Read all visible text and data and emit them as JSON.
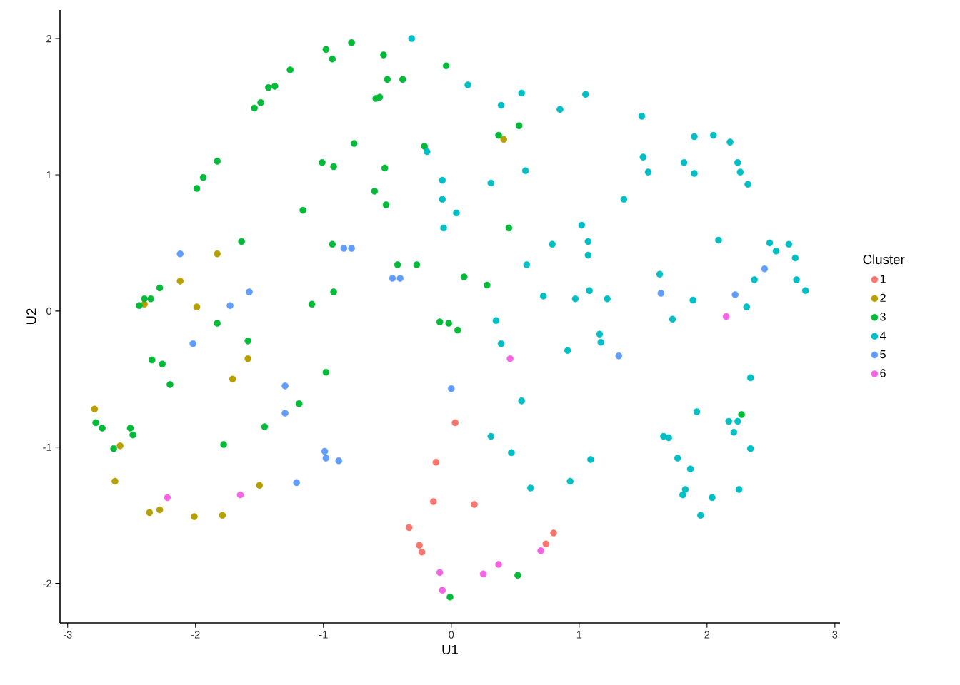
{
  "chart_data": {
    "type": "scatter",
    "xlabel": "U1",
    "ylabel": "U2",
    "legend_title": "Cluster",
    "legend": "right",
    "marker": "circle",
    "xlim": [
      -3.06,
      3.04
    ],
    "ylim": [
      -2.29,
      2.21
    ],
    "xticks": [
      -3,
      -2,
      -1,
      0,
      1,
      2,
      3
    ],
    "yticks": [
      -2,
      -1,
      0,
      1,
      2
    ],
    "series": [
      {
        "name": "1",
        "color": "#F8766D",
        "x": [
          0.03,
          -0.12,
          -0.14,
          0.18,
          -0.33,
          -0.25,
          -0.23,
          0.8,
          0.74
        ],
        "values": [
          -0.82,
          -1.11,
          -1.4,
          -1.42,
          -1.59,
          -1.72,
          -1.77,
          -1.63,
          -1.71
        ]
      },
      {
        "name": "2",
        "color": "#B79F00",
        "x": [
          -2.79,
          -2.59,
          -2.63,
          -2.36,
          -2.28,
          -2.01,
          -1.79,
          -1.5,
          -2.4,
          -2.12,
          -1.83,
          -1.99,
          -1.59,
          -1.71,
          0.41
        ],
        "values": [
          -0.72,
          -0.99,
          -1.25,
          -1.48,
          -1.46,
          -1.51,
          -1.5,
          -1.28,
          0.05,
          0.22,
          0.42,
          0.03,
          -0.35,
          -0.5,
          1.26
        ]
      },
      {
        "name": "3",
        "color": "#00BA38",
        "x": [
          -2.78,
          -2.73,
          -2.64,
          -2.51,
          -2.49,
          -2.44,
          -2.4,
          -2.35,
          -2.28,
          -2.34,
          -2.26,
          -2.2,
          -1.99,
          -1.94,
          -1.83,
          -1.83,
          -1.64,
          -1.59,
          -1.78,
          -1.46,
          -1.19,
          -1.16,
          -1.09,
          -0.98,
          -1.01,
          -0.92,
          -0.93,
          -0.92,
          -1.54,
          -1.49,
          -1.43,
          -1.38,
          -1.26,
          -0.98,
          -0.93,
          -0.78,
          -0.76,
          -0.59,
          -0.56,
          -0.53,
          -0.5,
          -0.52,
          -0.51,
          -0.6,
          -0.42,
          -0.38,
          -0.27,
          -0.21,
          -0.04,
          -0.09,
          -0.02,
          0.05,
          0.1,
          0.28,
          0.37,
          0.45,
          0.53,
          0.52,
          -0.01,
          2.27
        ],
        "values": [
          -0.82,
          -0.86,
          -1.01,
          -0.86,
          -0.91,
          0.04,
          0.09,
          0.09,
          0.17,
          -0.36,
          -0.39,
          -0.54,
          0.9,
          0.98,
          1.1,
          -0.09,
          0.51,
          -0.22,
          -0.98,
          -0.85,
          -0.68,
          0.74,
          0.05,
          -0.45,
          1.09,
          1.06,
          0.49,
          0.14,
          1.49,
          1.53,
          1.64,
          1.65,
          1.77,
          1.92,
          1.85,
          1.97,
          1.23,
          1.56,
          1.57,
          1.88,
          1.7,
          1.05,
          0.78,
          0.88,
          0.34,
          1.7,
          0.34,
          1.21,
          1.8,
          -0.08,
          -0.09,
          -0.14,
          0.25,
          0.19,
          1.29,
          0.61,
          1.36,
          -1.94,
          -2.1,
          -0.76
        ]
      },
      {
        "name": "4",
        "color": "#00BFC4",
        "x": [
          -0.31,
          0.13,
          0.39,
          0.55,
          0.85,
          1.05,
          1.49,
          1.5,
          1.54,
          1.9,
          1.9,
          1.82,
          2.05,
          2.18,
          2.24,
          2.26,
          2.32,
          1.35,
          0.31,
          -0.07,
          -0.19,
          -0.07,
          0.04,
          -0.06,
          0.58,
          1.02,
          1.07,
          1.07,
          0.79,
          0.59,
          0.72,
          0.97,
          1.08,
          1.22,
          1.16,
          1.17,
          0.91,
          0.35,
          0.39,
          2.09,
          2.49,
          2.54,
          2.64,
          2.69,
          2.7,
          2.77,
          2.37,
          2.31,
          1.63,
          1.73,
          1.89,
          2.34,
          1.92,
          2.17,
          2.24,
          2.21,
          2.34,
          1.66,
          1.7,
          1.77,
          1.87,
          1.83,
          1.81,
          2.04,
          1.95,
          2.25,
          0.93,
          1.09,
          0.62,
          0.47,
          0.31,
          0.55
        ],
        "values": [
          2.0,
          1.66,
          1.51,
          1.6,
          1.48,
          1.59,
          1.43,
          1.13,
          1.02,
          1.28,
          1.01,
          1.09,
          1.29,
          1.24,
          1.09,
          1.02,
          0.93,
          0.82,
          0.94,
          0.96,
          1.17,
          0.82,
          0.72,
          0.61,
          1.03,
          0.63,
          0.51,
          0.41,
          0.49,
          0.34,
          0.11,
          0.09,
          0.15,
          0.09,
          -0.17,
          -0.23,
          -0.29,
          -0.07,
          -0.24,
          0.52,
          0.5,
          0.44,
          0.49,
          0.39,
          0.23,
          0.15,
          0.23,
          0.03,
          0.27,
          -0.06,
          0.08,
          -0.49,
          -0.74,
          -0.81,
          -0.81,
          -0.89,
          -1.01,
          -0.92,
          -0.93,
          -1.08,
          -1.16,
          -1.31,
          -1.35,
          -1.37,
          -1.5,
          -1.31,
          -1.25,
          -1.09,
          -1.3,
          -1.04,
          -0.92,
          -0.66
        ]
      },
      {
        "name": "5",
        "color": "#619CFF",
        "x": [
          -2.12,
          -1.58,
          -1.73,
          -2.02,
          -0.84,
          -0.78,
          -0.46,
          -0.4,
          -1.3,
          -1.3,
          -0.99,
          -0.98,
          -0.88,
          -1.21,
          0.0,
          1.31,
          1.64,
          2.22,
          2.45
        ],
        "values": [
          0.42,
          0.14,
          0.04,
          -0.24,
          0.46,
          0.46,
          0.24,
          0.24,
          -0.55,
          -0.75,
          -1.03,
          -1.08,
          -1.1,
          -1.26,
          -0.57,
          -0.33,
          0.13,
          0.12,
          0.31
        ]
      },
      {
        "name": "6",
        "color": "#F564E3",
        "x": [
          -2.22,
          -1.65,
          -0.09,
          -0.07,
          0.25,
          0.37,
          0.46,
          0.7,
          2.15
        ],
        "values": [
          -1.37,
          -1.35,
          -1.92,
          -2.05,
          -1.93,
          -1.86,
          -0.35,
          -1.76,
          -0.04
        ]
      }
    ]
  }
}
